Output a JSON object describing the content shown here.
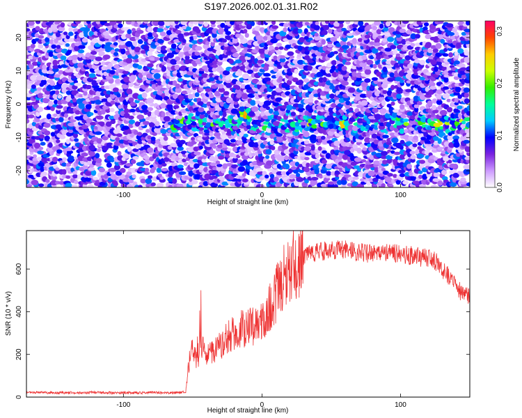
{
  "title": "S197.2026.002.01.31.R02",
  "chart_data": [
    {
      "type": "heatmap",
      "xlabel": "Height of straight line (km)",
      "ylabel": "Frequency (Hz)",
      "xlim": [
        -170,
        150
      ],
      "ylim": [
        -25,
        25
      ],
      "xticks": [
        -100,
        0,
        100
      ],
      "yticks": [
        -20,
        -10,
        0,
        10,
        20
      ],
      "colorbar": {
        "label": "Normalized spectral amplitude",
        "range": [
          0,
          0.32
        ],
        "ticks": [
          "0.0",
          "0.1",
          "0.2",
          "0.3"
        ],
        "tick_values": [
          0,
          0.1,
          0.2,
          0.3
        ],
        "colors": [
          "#ffffff",
          "#cc99ff",
          "#7a22e0",
          "#0000ff",
          "#00ccff",
          "#00ff99",
          "#33ee00",
          "#ccff00",
          "#ffcc00",
          "#ff4400",
          "#ff0066"
        ]
      },
      "signal_band": {
        "frequency_hz": -6,
        "x_start_km": -65,
        "x_end_km": 150
      },
      "hotspots": [
        {
          "x": -12,
          "y": -3,
          "amplitude": 0.32
        },
        {
          "x": 58,
          "y": -6,
          "amplitude": 0.3
        },
        {
          "x": 128,
          "y": -6,
          "amplitude": 0.32
        },
        {
          "x": -52,
          "y": -6,
          "amplitude": 0.12
        },
        {
          "x": 100,
          "y": -5,
          "amplitude": 0.12
        }
      ]
    },
    {
      "type": "line",
      "xlabel": "Height of straight line (km)",
      "ylabel": "SNR (10 * v/v)",
      "xlim": [
        -170,
        150
      ],
      "ylim": [
        0,
        780
      ],
      "xticks": [
        -100,
        0,
        100
      ],
      "yticks": [
        0,
        200,
        400,
        600
      ],
      "line_color": "#ee3333",
      "series": [
        {
          "x": [
            -170,
            -160,
            -150,
            -140,
            -130,
            -120,
            -110,
            -100,
            -90,
            -80,
            -70,
            -60,
            -55,
            -52,
            -50,
            -47,
            -45,
            -42,
            -40,
            -37,
            -35,
            -30,
            -25,
            -20,
            -15,
            -10,
            -5,
            0,
            5,
            10,
            15,
            20,
            25,
            30,
            40,
            50,
            60,
            70,
            80,
            90,
            100,
            110,
            120,
            125,
            130,
            135,
            140,
            145,
            150
          ],
          "y": [
            20,
            22,
            20,
            21,
            20,
            22,
            20,
            21,
            20,
            22,
            20,
            20,
            25,
            200,
            220,
            180,
            200,
            230,
            180,
            220,
            210,
            240,
            280,
            300,
            320,
            320,
            340,
            360,
            420,
            480,
            550,
            600,
            640,
            660,
            680,
            690,
            690,
            680,
            670,
            680,
            670,
            660,
            650,
            640,
            600,
            560,
            520,
            480,
            470
          ]
        }
      ]
    }
  ]
}
